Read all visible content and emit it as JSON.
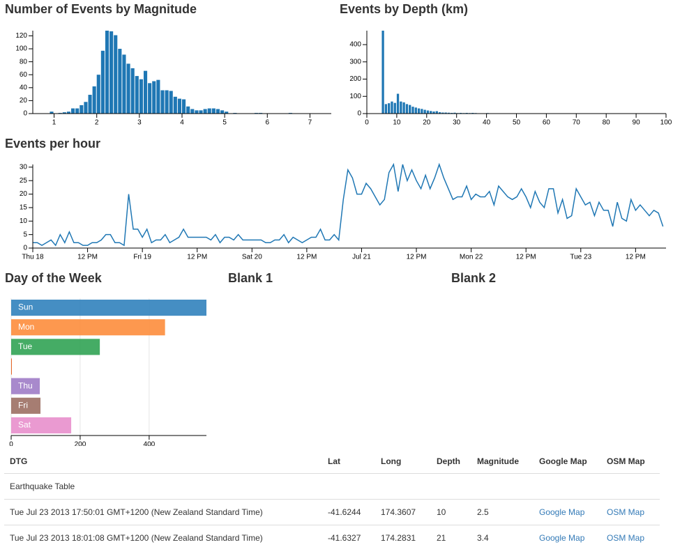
{
  "chart_data": [
    {
      "type": "bar",
      "title": "Number of Events by Magnitude",
      "color": "#1f77b4",
      "x": [
        0.9,
        1.1,
        1.2,
        1.3,
        1.4,
        1.5,
        1.6,
        1.7,
        1.8,
        1.9,
        2,
        2.1,
        2.2,
        2.3,
        2.4,
        2.5,
        2.6,
        2.7,
        2.8,
        2.9,
        3,
        3.1,
        3.2,
        3.3,
        3.4,
        3.5,
        3.6,
        3.7,
        3.8,
        3.9,
        4,
        4.1,
        4.2,
        4.3,
        4.4,
        4.5,
        4.6,
        4.7,
        4.8,
        4.9,
        5,
        5.2,
        5.7,
        5.8,
        6.5
      ],
      "values": [
        3,
        1,
        2,
        3,
        8,
        8,
        13,
        18,
        29,
        42,
        60,
        97,
        128,
        127,
        121,
        100,
        91,
        77,
        70,
        58,
        53,
        66,
        47,
        50,
        52,
        36,
        36,
        35,
        26,
        23,
        22,
        11,
        7,
        5,
        5,
        7,
        8,
        8,
        7,
        5,
        3,
        1,
        1,
        1,
        1
      ],
      "xlim": [
        0.5,
        7.5
      ],
      "xticks": [
        1,
        2,
        3,
        4,
        5,
        6,
        7
      ],
      "ylim": [
        0,
        128
      ],
      "yticks": [
        0,
        20,
        40,
        60,
        80,
        100,
        120
      ]
    },
    {
      "type": "bar",
      "title": "Events by Depth (km)",
      "color": "#1f77b4",
      "x": [
        5,
        6,
        7,
        8,
        9,
        10,
        11,
        12,
        13,
        14,
        15,
        16,
        17,
        18,
        19,
        20,
        21,
        22,
        23,
        24,
        25,
        26,
        27,
        28,
        29,
        30,
        31,
        32,
        33,
        34,
        35,
        36,
        38,
        40,
        41,
        43,
        45,
        46,
        47,
        48,
        50,
        52,
        53,
        57,
        60,
        63,
        67,
        68,
        70,
        73
      ],
      "values": [
        481,
        55,
        60,
        70,
        62,
        115,
        70,
        65,
        55,
        50,
        40,
        35,
        30,
        27,
        22,
        18,
        15,
        12,
        14,
        8,
        6,
        6,
        5,
        4,
        5,
        3,
        4,
        3,
        4,
        3,
        4,
        3,
        2,
        3,
        2,
        2,
        1,
        2,
        2,
        2,
        1,
        1,
        1,
        1,
        1,
        1,
        1,
        1,
        2,
        1
      ],
      "xlim": [
        0,
        100
      ],
      "xticks": [
        0,
        10,
        20,
        30,
        40,
        50,
        60,
        70,
        80,
        90,
        100
      ],
      "ylim": [
        0,
        481
      ],
      "yticks": [
        0,
        100,
        200,
        300,
        400
      ]
    },
    {
      "type": "line",
      "title": "Events per hour",
      "color": "#1f77b4",
      "x": [
        "Jul 18 00:00",
        "Jul 18 01:00",
        "Jul 18 02:00",
        "Jul 18 03:00",
        "Jul 18 04:00",
        "Jul 18 05:00",
        "Jul 18 06:00",
        "Jul 18 07:00",
        "Jul 18 08:00",
        "Jul 18 09:00",
        "Jul 18 10:00",
        "Jul 18 11:00",
        "Jul 18 12:00",
        "Jul 18 13:00",
        "Jul 18 14:00",
        "Jul 18 15:00",
        "Jul 18 16:00",
        "Jul 18 17:00",
        "Jul 18 18:00",
        "Jul 18 19:00",
        "Jul 18 20:00",
        "Jul 18 21:00",
        "Jul 18 22:00",
        "Jul 18 23:00",
        "Jul 19 00:00",
        "Jul 19 01:00",
        "Jul 19 02:00",
        "Jul 19 03:00",
        "Jul 19 04:00",
        "Jul 19 05:00",
        "Jul 19 06:00",
        "Jul 19 07:00",
        "Jul 19 08:00",
        "Jul 19 09:00",
        "Jul 19 10:00",
        "Jul 19 11:00",
        "Jul 19 12:00",
        "Jul 19 13:00",
        "Jul 19 14:00",
        "Jul 19 15:00",
        "Jul 19 16:00",
        "Jul 19 17:00",
        "Jul 19 18:00",
        "Jul 19 19:00",
        "Jul 19 20:00",
        "Jul 19 21:00",
        "Jul 19 22:00",
        "Jul 19 23:00",
        "Jul 20 00:00",
        "Jul 20 01:00",
        "Jul 20 02:00",
        "Jul 20 03:00",
        "Jul 20 04:00",
        "Jul 20 05:00",
        "Jul 20 06:00",
        "Jul 20 07:00",
        "Jul 20 08:00",
        "Jul 20 09:00",
        "Jul 20 10:00",
        "Jul 20 11:00",
        "Jul 20 12:00",
        "Jul 20 13:00",
        "Jul 20 14:00",
        "Jul 20 15:00",
        "Jul 20 16:00",
        "Jul 20 17:00",
        "Jul 20 18:00",
        "Jul 20 19:00",
        "Jul 20 20:00",
        "Jul 20 21:00",
        "Jul 20 22:00",
        "Jul 20 23:00",
        "Jul 21 00:00",
        "Jul 21 01:00",
        "Jul 21 02:00",
        "Jul 21 03:00",
        "Jul 21 04:00",
        "Jul 21 05:00",
        "Jul 21 06:00",
        "Jul 21 07:00",
        "Jul 21 08:00",
        "Jul 21 09:00",
        "Jul 21 10:00",
        "Jul 21 11:00",
        "Jul 21 12:00",
        "Jul 21 13:00",
        "Jul 21 14:00",
        "Jul 21 15:00",
        "Jul 21 16:00",
        "Jul 21 17:00",
        "Jul 21 18:00",
        "Jul 21 19:00",
        "Jul 21 20:00",
        "Jul 21 21:00",
        "Jul 21 22:00",
        "Jul 21 23:00",
        "Jul 22 00:00",
        "Jul 22 01:00",
        "Jul 22 02:00",
        "Jul 22 03:00",
        "Jul 22 04:00",
        "Jul 22 05:00",
        "Jul 22 06:00",
        "Jul 22 07:00",
        "Jul 22 08:00",
        "Jul 22 09:00",
        "Jul 22 10:00",
        "Jul 22 11:00",
        "Jul 22 12:00",
        "Jul 22 13:00",
        "Jul 22 14:00",
        "Jul 22 15:00",
        "Jul 22 16:00",
        "Jul 22 17:00",
        "Jul 22 18:00",
        "Jul 22 19:00",
        "Jul 22 20:00",
        "Jul 22 21:00",
        "Jul 22 22:00",
        "Jul 22 23:00",
        "Jul 23 00:00",
        "Jul 23 01:00",
        "Jul 23 02:00",
        "Jul 23 03:00",
        "Jul 23 04:00",
        "Jul 23 05:00",
        "Jul 23 06:00",
        "Jul 23 07:00",
        "Jul 23 08:00",
        "Jul 23 09:00",
        "Jul 23 10:00",
        "Jul 23 11:00",
        "Jul 23 12:00",
        "Jul 23 13:00",
        "Jul 23 14:00",
        "Jul 23 15:00",
        "Jul 23 16:00",
        "Jul 23 17:00",
        "Jul 23 18:00"
      ],
      "values": [
        2,
        2,
        1,
        2,
        3,
        1,
        5,
        2,
        6,
        2,
        2,
        1,
        1,
        2,
        2,
        3,
        5,
        5,
        2,
        2,
        1,
        20,
        7,
        7,
        4,
        7,
        2,
        3,
        3,
        5,
        2,
        3,
        4,
        7,
        4,
        4,
        4,
        4,
        4,
        3,
        5,
        2,
        4,
        4,
        3,
        5,
        3,
        3,
        3,
        3,
        3,
        2,
        2,
        3,
        3,
        5,
        2,
        4,
        3,
        2,
        3,
        4,
        4,
        7,
        3,
        3,
        5,
        3,
        18,
        29,
        26,
        20,
        20,
        24,
        22,
        19,
        16,
        18,
        28,
        31,
        21,
        31,
        25,
        29,
        25,
        22,
        27,
        22,
        26,
        31,
        26,
        22,
        18,
        19,
        19,
        23,
        18,
        20,
        19,
        19,
        21,
        16,
        23,
        21,
        19,
        18,
        19,
        22,
        19,
        15,
        21,
        17,
        15,
        22,
        22,
        13,
        18,
        11,
        12,
        22,
        19,
        16,
        17,
        12,
        17,
        14,
        14,
        8,
        17,
        11,
        10,
        18,
        14,
        16,
        14,
        12,
        14,
        13,
        8
      ],
      "xlim": [
        "Jul 18 00:00",
        "Jul 23 18:40"
      ],
      "xticks": [
        {
          "value": "Jul 18 00:00",
          "label": "Thu 18"
        },
        {
          "value": "Jul 18 12:00",
          "label": "12 PM"
        },
        {
          "value": "Jul 19 00:00",
          "label": "Fri 19"
        },
        {
          "value": "Jul 19 12:00",
          "label": "12 PM"
        },
        {
          "value": "Jul 20 00:00",
          "label": "Sat 20"
        },
        {
          "value": "Jul 20 12:00",
          "label": "12 PM"
        },
        {
          "value": "Jul 21 00:00",
          "label": "Jul 21"
        },
        {
          "value": "Jul 21 12:00",
          "label": "12 PM"
        },
        {
          "value": "Jul 22 00:00",
          "label": "Mon 22"
        },
        {
          "value": "Jul 22 12:00",
          "label": "12 PM"
        },
        {
          "value": "Jul 23 00:00",
          "label": "Tue 23"
        },
        {
          "value": "Jul 23 12:00",
          "label": "12 PM"
        }
      ],
      "ylim": [
        0,
        31
      ],
      "yticks": [
        0,
        5,
        10,
        15,
        20,
        25,
        30
      ]
    },
    {
      "type": "row",
      "title": "Day of the Week",
      "categories": [
        "Sun",
        "Mon",
        "Tue",
        null,
        "Thu",
        "Fri",
        "Sat"
      ],
      "values": [
        566,
        446,
        257,
        2,
        83,
        85,
        174
      ],
      "colors": [
        "#3182bd",
        "#fd8d3c",
        "#31a354",
        "#e6550d",
        "#9e7cc6",
        "#9c6f63",
        "#e88fcc"
      ],
      "xlim": [
        0,
        566
      ],
      "xticks": [
        0,
        200,
        400
      ],
      "grid": true
    }
  ],
  "panels": [
    "Blank 1",
    "Blank 2"
  ],
  "table": {
    "columns": [
      "DTG",
      "Lat",
      "Long",
      "Depth",
      "Magnitude",
      "Google Map",
      "OSM Map"
    ],
    "group": "Earthquake Table",
    "rows": [
      [
        "Tue Jul 23 2013 17:50:01 GMT+1200 (New Zealand Standard Time)",
        "-41.6244",
        "174.3607",
        "10",
        "2.5",
        "Google Map",
        "OSM Map"
      ],
      [
        "Tue Jul 23 2013 18:01:08 GMT+1200 (New Zealand Standard Time)",
        "-41.6327",
        "174.2831",
        "21",
        "3.4",
        "Google Map",
        "OSM Map"
      ]
    ]
  }
}
